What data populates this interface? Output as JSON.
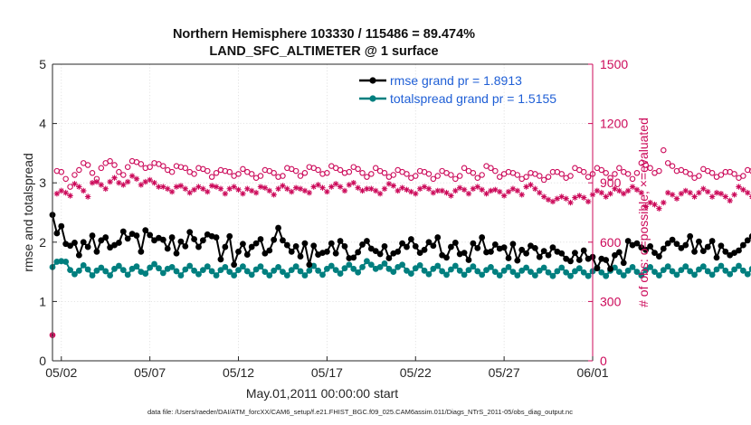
{
  "chart_data": {
    "type": "line",
    "title_line1": "Northern Hemisphere 103330 / 115486 = 89.474%",
    "title_line2": "LAND_SFC_ALTIMETER @ 1 surface",
    "xlabel": "May.01,2011 00:00:00 start",
    "ylabel_left": "rmse and totalspread",
    "ylabel_right": "# of obs: o=possible; ×=evaluated",
    "footnote": "data file: /Users/raeder/DAI/ATM_forcXX/CAM6_setup/f.e21.FHIST_BGC.f09_025.CAM6assim.011/Diags_NTrS_2011-05/obs_diag_output.nc",
    "x_ticks": [
      "05/02",
      "05/07",
      "05/12",
      "05/17",
      "05/22",
      "05/27",
      "06/01"
    ],
    "x_tick_days": [
      1,
      6,
      11,
      16,
      21,
      26,
      31
    ],
    "xlim_days": [
      0.5,
      31
    ],
    "ylim_left": [
      0,
      5
    ],
    "y_ticks_left": [
      "0",
      "1",
      "2",
      "3",
      "4",
      "5"
    ],
    "ylim_right": [
      0,
      1500
    ],
    "y_ticks_right": [
      "0",
      "300",
      "600",
      "900",
      "1200",
      "1500"
    ],
    "grid": true,
    "legend_position": "top-right",
    "colors": {
      "rmse": "#000000",
      "spread": "#007f7f",
      "obs": "#cc0a5a",
      "legend_text": "#1f5fd6",
      "grid": "#dcdcdc"
    },
    "series": [
      {
        "name": "rmse",
        "legend": "rmse grand pr = 1.8913",
        "x_start_day": 0.5,
        "step_days": 0.25,
        "values": [
          2.46,
          2.15,
          2.27,
          1.97,
          1.94,
          1.99,
          1.78,
          2.0,
          1.92,
          2.11,
          1.84,
          2.03,
          2.08,
          1.91,
          1.95,
          1.99,
          2.18,
          2.06,
          2.14,
          2.11,
          1.84,
          2.2,
          2.12,
          2.03,
          2.07,
          2.04,
          1.89,
          2.08,
          1.81,
          2.01,
          1.93,
          2.17,
          2.05,
          1.92,
          2.03,
          2.13,
          2.1,
          2.08,
          1.71,
          1.92,
          2.1,
          1.62,
          1.84,
          1.97,
          1.79,
          1.92,
          1.98,
          2.05,
          1.81,
          1.86,
          2.04,
          2.24,
          2.03,
          1.95,
          1.84,
          1.93,
          1.76,
          1.98,
          1.62,
          1.94,
          1.79,
          1.82,
          1.84,
          1.98,
          1.81,
          2.02,
          1.93,
          1.73,
          1.74,
          1.83,
          1.96,
          2.02,
          1.89,
          1.85,
          1.8,
          1.93,
          1.73,
          1.81,
          1.84,
          1.98,
          1.92,
          2.05,
          1.93,
          1.82,
          1.87,
          2.0,
          1.94,
          2.08,
          1.78,
          1.74,
          1.92,
          1.99,
          1.8,
          1.82,
          1.7,
          1.98,
          1.9,
          2.08,
          1.83,
          1.84,
          1.96,
          1.89,
          1.91,
          1.73,
          1.97,
          1.69,
          1.87,
          1.81,
          1.94,
          1.9,
          1.75,
          1.85,
          1.78,
          1.91,
          1.84,
          1.81,
          1.72,
          1.68,
          1.82,
          1.7,
          1.86,
          1.72,
          1.75,
          1.56,
          1.72,
          1.7,
          1.55,
          1.78,
          1.83,
          1.65,
          2.02,
          1.95,
          1.98,
          1.91,
          1.87,
          1.93,
          1.82,
          1.76,
          1.89,
          1.98,
          2.04,
          1.97,
          1.9,
          1.95,
          2.1,
          1.84,
          2.01,
          1.85,
          1.92,
          2.02,
          1.74,
          1.94,
          1.84,
          1.78,
          1.82,
          1.86,
          1.95,
          2.03,
          2.1,
          2.0,
          1.93,
          2.21,
          2.01,
          1.86,
          1.78,
          1.98,
          1.94,
          2.15,
          1.98,
          1.82,
          1.88,
          1.93,
          1.77,
          1.62,
          1.84,
          1.69,
          1.91,
          1.75,
          1.59,
          1.82,
          1.63,
          1.78,
          1.84,
          1.64,
          2.06,
          1.91
        ]
      },
      {
        "name": "totalspread",
        "legend": "totalspread grand pr = 1.5155",
        "x_start_day": 0.5,
        "step_days": 0.25,
        "values": [
          1.58,
          1.67,
          1.68,
          1.67,
          1.53,
          1.46,
          1.52,
          1.61,
          1.54,
          1.44,
          1.52,
          1.57,
          1.51,
          1.44,
          1.55,
          1.6,
          1.53,
          1.45,
          1.55,
          1.59,
          1.5,
          1.47,
          1.57,
          1.63,
          1.56,
          1.48,
          1.55,
          1.58,
          1.51,
          1.44,
          1.54,
          1.6,
          1.52,
          1.46,
          1.53,
          1.59,
          1.51,
          1.44,
          1.53,
          1.58,
          1.5,
          1.44,
          1.53,
          1.59,
          1.51,
          1.45,
          1.54,
          1.59,
          1.5,
          1.44,
          1.52,
          1.58,
          1.5,
          1.44,
          1.53,
          1.59,
          1.51,
          1.44,
          1.52,
          1.6,
          1.52,
          1.45,
          1.55,
          1.6,
          1.53,
          1.47,
          1.56,
          1.62,
          1.55,
          1.49,
          1.58,
          1.68,
          1.62,
          1.55,
          1.58,
          1.64,
          1.55,
          1.5,
          1.58,
          1.62,
          1.52,
          1.47,
          1.56,
          1.61,
          1.52,
          1.46,
          1.55,
          1.6,
          1.51,
          1.45,
          1.54,
          1.6,
          1.52,
          1.45,
          1.53,
          1.59,
          1.51,
          1.45,
          1.53,
          1.58,
          1.5,
          1.44,
          1.52,
          1.58,
          1.5,
          1.44,
          1.52,
          1.57,
          1.5,
          1.44,
          1.52,
          1.57,
          1.49,
          1.43,
          1.51,
          1.57,
          1.49,
          1.43,
          1.51,
          1.56,
          1.49,
          1.43,
          1.51,
          1.57,
          1.49,
          1.43,
          1.52,
          1.57,
          1.5,
          1.44,
          1.52,
          1.58,
          1.5,
          1.44,
          1.53,
          1.58,
          1.5,
          1.44,
          1.53,
          1.59,
          1.51,
          1.45,
          1.53,
          1.59,
          1.51,
          1.45,
          1.54,
          1.59,
          1.51,
          1.45,
          1.54,
          1.6,
          1.52,
          1.46,
          1.54,
          1.6,
          1.52,
          1.46,
          1.55,
          1.6,
          1.52,
          1.46,
          1.55,
          1.61,
          1.53,
          1.46,
          1.55,
          1.61,
          1.53,
          1.47,
          1.56,
          1.61,
          1.53,
          1.47,
          1.56,
          1.62,
          1.54,
          1.47,
          1.56,
          1.62,
          1.54,
          1.48,
          1.57,
          1.62,
          1.54,
          1.48,
          1.57,
          1.53
        ]
      },
      {
        "name": "obs_possible",
        "marker": "o",
        "x_start_day": 0.5,
        "step_days": 0.25,
        "values": [
          130,
          960,
          955,
          920,
          880,
          940,
          965,
          1000,
          990,
          950,
          920,
          975,
          1000,
          1010,
          990,
          955,
          940,
          980,
          1010,
          1005,
          995,
          975,
          980,
          1000,
          995,
          985,
          965,
          955,
          985,
          980,
          975,
          955,
          945,
          975,
          970,
          960,
          930,
          950,
          965,
          960,
          955,
          935,
          945,
          970,
          955,
          945,
          925,
          935,
          965,
          960,
          950,
          930,
          935,
          975,
          970,
          960,
          935,
          950,
          980,
          975,
          965,
          945,
          950,
          985,
          975,
          965,
          950,
          955,
          980,
          970,
          950,
          930,
          945,
          975,
          960,
          950,
          930,
          940,
          965,
          955,
          945,
          925,
          935,
          960,
          955,
          945,
          920,
          935,
          960,
          950,
          940,
          920,
          935,
          975,
          960,
          950,
          925,
          940,
          985,
          975,
          960,
          930,
          945,
          955,
          950,
          940,
          920,
          930,
          950,
          945,
          935,
          915,
          930,
          955,
          955,
          945,
          925,
          935,
          975,
          965,
          955,
          930,
          945,
          975,
          965,
          950,
          925,
          945,
          975,
          955,
          945,
          920,
          950,
          1000,
          990,
          975,
          950,
          960,
          1065,
          1000,
          985,
          960,
          965,
          955,
          945,
          925,
          935,
          970,
          960,
          950,
          930,
          940,
          955,
          955,
          945,
          925,
          935,
          965,
          960,
          950,
          930,
          945,
          980,
          965,
          950,
          935,
          950,
          960,
          950,
          945,
          925,
          945,
          965,
          960,
          960,
          960
        ]
      },
      {
        "name": "obs_evaluated",
        "marker": "x",
        "x_start_day": 0.5,
        "step_days": 0.25,
        "values": [
          130,
          845,
          860,
          850,
          835,
          895,
          880,
          860,
          830,
          900,
          905,
          890,
          870,
          905,
          925,
          900,
          890,
          905,
          935,
          920,
          890,
          905,
          915,
          900,
          880,
          880,
          870,
          855,
          880,
          885,
          870,
          850,
          865,
          880,
          870,
          855,
          885,
          880,
          870,
          845,
          870,
          880,
          865,
          845,
          870,
          860,
          850,
          880,
          875,
          860,
          840,
          870,
          885,
          870,
          855,
          875,
          870,
          860,
          850,
          880,
          890,
          875,
          855,
          880,
          895,
          880,
          860,
          890,
          900,
          875,
          860,
          870,
          870,
          860,
          845,
          870,
          895,
          885,
          860,
          875,
          865,
          855,
          845,
          870,
          880,
          870,
          850,
          860,
          860,
          850,
          835,
          860,
          875,
          865,
          845,
          870,
          880,
          865,
          845,
          860,
          865,
          855,
          835,
          855,
          870,
          860,
          840,
          880,
          890,
          870,
          850,
          830,
          815,
          805,
          820,
          830,
          820,
          800,
          825,
          835,
          825,
          805,
          840,
          860,
          850,
          830,
          845,
          870,
          860,
          845,
          860,
          880,
          865,
          850,
          780,
          800,
          790,
          770,
          800,
          850,
          840,
          820,
          845,
          860,
          850,
          830,
          850,
          870,
          855,
          830,
          850,
          845,
          830,
          810,
          840,
          880,
          865,
          850,
          830,
          865,
          880,
          865,
          845,
          835,
          860,
          840,
          820,
          835,
          850,
          840,
          825,
          855,
          870,
          855,
          840,
          860,
          865,
          850,
          835,
          850,
          865,
          855,
          840,
          845,
          850,
          0
        ]
      }
    ]
  }
}
